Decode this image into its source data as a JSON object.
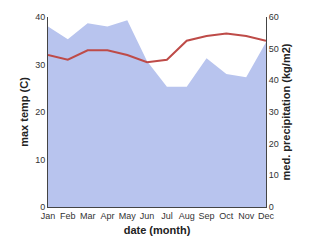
{
  "chart_data": {
    "type": "line",
    "categories": [
      "Jan",
      "Feb",
      "Mar",
      "Apr",
      "May",
      "Jun",
      "Jul",
      "Aug",
      "Sep",
      "Oct",
      "Nov",
      "Dec"
    ],
    "series": [
      {
        "type": "area",
        "color": "#b8c4ee",
        "axis": "y2",
        "values": [
          57,
          53,
          58,
          57,
          59,
          46,
          38,
          38,
          47,
          42,
          41,
          52
        ]
      },
      {
        "type": "line",
        "color": "#be4b48",
        "values": [
          32,
          31,
          33,
          33,
          32,
          30.5,
          31,
          35,
          36,
          36.5,
          36,
          35
        ]
      }
    ],
    "xlabel": "date (month)",
    "ylabel": "max temp (C)",
    "y2label": "med. precipitation (kg/m2)",
    "ylim": [
      0,
      40
    ],
    "yticks": [
      0,
      10,
      20,
      30,
      40
    ],
    "y2lim": [
      0,
      60
    ],
    "y2ticks": [
      0,
      10,
      20,
      30,
      40,
      50,
      60
    ],
    "grid": false
  }
}
